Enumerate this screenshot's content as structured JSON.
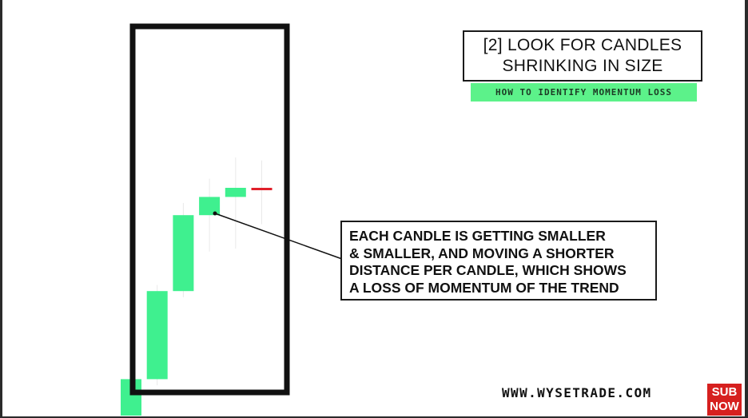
{
  "title": {
    "line1": "[2] LOOK FOR CANDLES",
    "line2": "SHRINKING IN SIZE"
  },
  "subtitle": "HOW TO IDENTIFY MOMENTUM LOSS",
  "annotation": {
    "lines": [
      "EACH CANDLE IS GETTING SMALLER",
      "& SMALLER, AND MOVING A SHORTER",
      "DISTANCE PER CANDLE, WHICH SHOWS",
      "A LOSS OF MOMENTUM OF THE TREND"
    ]
  },
  "website": "WWW.WYSETRADE.COM",
  "subscribe_badge": {
    "line1": "SUB",
    "line2": "NOW"
  },
  "colors": {
    "bullish": "#3ff08f",
    "bearish": "#e0202a",
    "frame": "#111111",
    "subtitle_bg": "#5cf28a"
  },
  "chart_data": {
    "type": "candlestick",
    "title": "",
    "xlabel": "",
    "ylabel": "",
    "ylim": [
      0,
      100
    ],
    "grid": false,
    "legend": "none",
    "candles": [
      {
        "open": 0,
        "close": 12,
        "high": 12,
        "low": 0,
        "direction": "up"
      },
      {
        "open": 12,
        "close": 41,
        "high": 43,
        "low": 10,
        "direction": "up"
      },
      {
        "open": 41,
        "close": 66,
        "high": 70,
        "low": 39,
        "direction": "up"
      },
      {
        "open": 66,
        "close": 72,
        "high": 78,
        "low": 54,
        "direction": "up"
      },
      {
        "open": 72,
        "close": 75,
        "high": 85,
        "low": 55,
        "direction": "up"
      },
      {
        "open": 75,
        "close": 74.6,
        "high": 84,
        "low": 63,
        "direction": "down"
      }
    ]
  }
}
